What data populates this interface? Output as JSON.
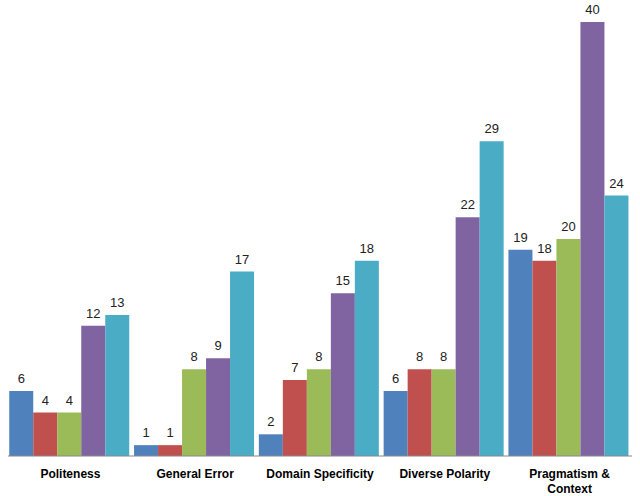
{
  "chart_data": {
    "type": "bar",
    "categories": [
      "Politeness",
      "General Error",
      "Domain Specificity",
      "Diverse Polarity",
      "Pragmatism & Context"
    ],
    "series": [
      {
        "color": "#4f81bd",
        "values": [
          6,
          1,
          2,
          6,
          19
        ]
      },
      {
        "color": "#c0504d",
        "values": [
          4,
          1,
          7,
          8,
          18
        ]
      },
      {
        "color": "#9bbb59",
        "values": [
          4,
          8,
          8,
          8,
          20
        ]
      },
      {
        "color": "#8064a2",
        "values": [
          12,
          9,
          15,
          22,
          40
        ]
      },
      {
        "color": "#4bacc6",
        "values": [
          13,
          17,
          18,
          29,
          24
        ]
      }
    ],
    "ylim": [
      0,
      40
    ],
    "grid": false,
    "data_labels": true,
    "tick_labels": "x"
  }
}
